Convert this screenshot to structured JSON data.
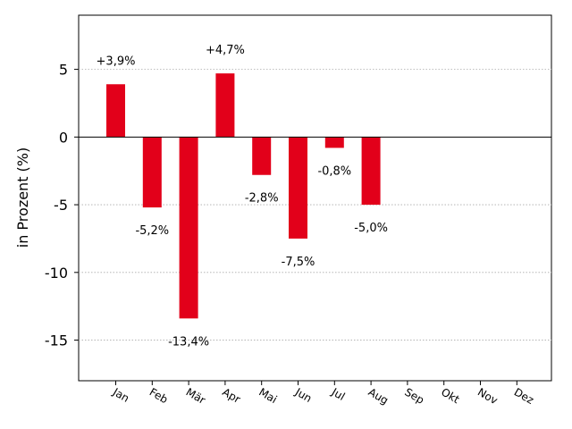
{
  "chart_data": {
    "type": "bar",
    "categories": [
      "Jan",
      "Feb",
      "Mär",
      "Apr",
      "Mai",
      "Jun",
      "Jul",
      "Aug",
      "Sep",
      "Okt",
      "Nov",
      "Dez"
    ],
    "values": [
      3.9,
      -5.2,
      -13.4,
      4.7,
      -2.8,
      -7.5,
      -0.8,
      -5.0,
      null,
      null,
      null,
      null
    ],
    "data_labels": [
      "+3,9%",
      "-5,2%",
      "-13,4%",
      "+4,7%",
      "-2,8%",
      "-7,5%",
      "-0,8%",
      "-5,0%",
      "",
      "",
      "",
      ""
    ],
    "title": "",
    "xlabel": "",
    "ylabel": "in Prozent (%)",
    "ylim": [
      -18,
      9
    ],
    "yticks": [
      5,
      0,
      -5,
      -10,
      -15
    ],
    "ytick_labels": [
      "5",
      "0",
      "-5",
      "-10",
      "-15"
    ],
    "grid": "horizontal dotted",
    "bar_color": "#e2001a",
    "zero_line_color": "#000000"
  }
}
